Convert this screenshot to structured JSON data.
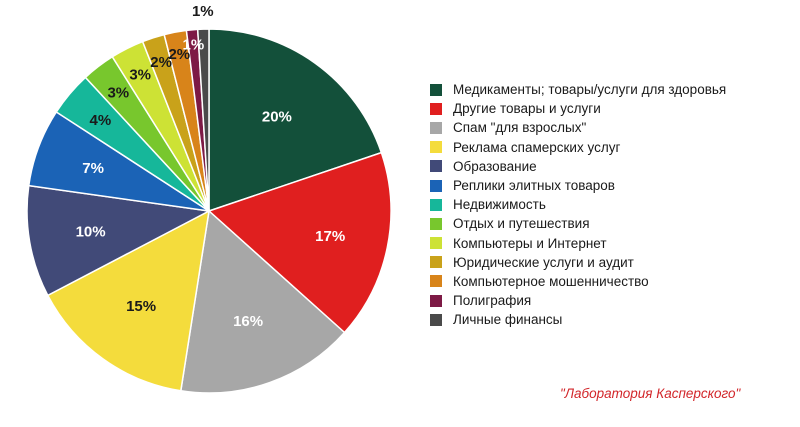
{
  "chart_data": {
    "type": "pie",
    "title": "",
    "start": "top",
    "direction": "clockwise",
    "slices": [
      {
        "name": "Медикаменты; товары/услуги для здоровья",
        "value": 20,
        "label": "20%",
        "color": "#13503a",
        "label_color": "#ffffff"
      },
      {
        "name": "Другие товары и услуги",
        "value": 17,
        "label": "17%",
        "color": "#e01f1f",
        "label_color": "#ffffff"
      },
      {
        "name": "Спам \"для взрослых\"",
        "value": 16,
        "label": "16%",
        "color": "#a7a7a7",
        "label_color": "#ffffff"
      },
      {
        "name": "Реклама спамерских услуг",
        "value": 15,
        "label": "15%",
        "color": "#f4dc3c",
        "label_color": "#1a1a1a"
      },
      {
        "name": "Образование",
        "value": 10,
        "label": "10%",
        "color": "#414a78",
        "label_color": "#ffffff"
      },
      {
        "name": "Реплики элитных товаров",
        "value": 7,
        "label": "7%",
        "color": "#1b63b6",
        "label_color": "#ffffff"
      },
      {
        "name": "Недвижимость",
        "value": 4,
        "label": "4%",
        "color": "#16b79a",
        "label_color": "#1a1a1a"
      },
      {
        "name": "Отдых и путешествия",
        "value": 3,
        "label": "3%",
        "color": "#78c72d",
        "label_color": "#1a1a1a"
      },
      {
        "name": "Компьютеры и Интернет",
        "value": 3,
        "label": "3%",
        "color": "#cde235",
        "label_color": "#1a1a1a"
      },
      {
        "name": "Юридические услуги и аудит",
        "value": 2,
        "label": "2%",
        "color": "#c9a21a",
        "label_color": "#1a1a1a"
      },
      {
        "name": "Компьютерное мошенничество",
        "value": 2,
        "label": "2%",
        "color": "#d8841a",
        "label_color": "#1a1a1a"
      },
      {
        "name": "Полиграфия",
        "value": 1,
        "label": "1%",
        "color": "#7d1a45",
        "label_color": "#ffffff"
      },
      {
        "name": "Личные финансы",
        "value": 1,
        "label": "1%",
        "color": "#4a4a4a",
        "label_color": "#1a1a1a"
      }
    ],
    "legend_position": "right"
  },
  "source_caption": "\"Лаборатория Касперского\""
}
